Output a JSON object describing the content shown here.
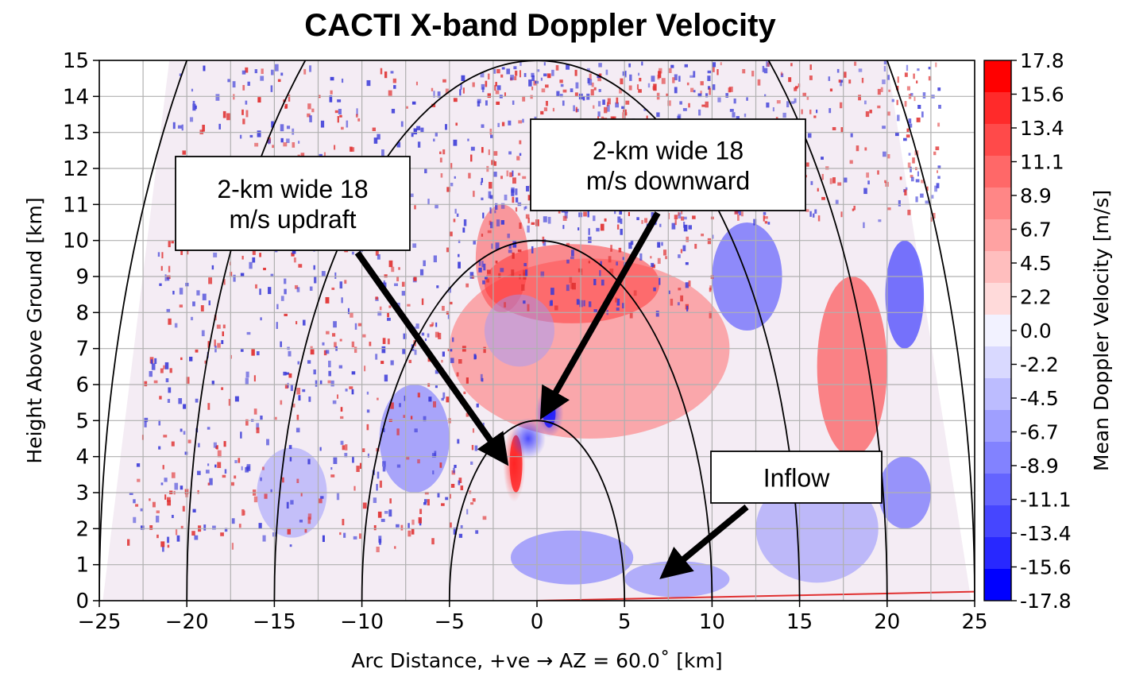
{
  "chart_data": {
    "type": "heatmap",
    "title": "CACTI X-band Doppler Velocity",
    "xlabel": "Arc Distance, +ve → AZ = 60.0˚ [km]",
    "ylabel": "Height Above Ground [km]",
    "xlim": [
      -25,
      25
    ],
    "ylim": [
      0,
      15
    ],
    "xticks": [
      "−25",
      "−20",
      "−15",
      "−10",
      "−5",
      "0",
      "5",
      "10",
      "15",
      "20",
      "25"
    ],
    "yticks": [
      "0",
      "1",
      "2",
      "3",
      "4",
      "5",
      "6",
      "7",
      "8",
      "9",
      "10",
      "11",
      "12",
      "13",
      "14",
      "15"
    ],
    "grid": true,
    "colorbar": {
      "label": "Mean Doppler Velocity [m/s]",
      "ticks": [
        "17.8",
        "15.6",
        "13.4",
        "11.1",
        "8.9",
        "6.7",
        "4.5",
        "2.2",
        "0.0",
        "-2.2",
        "-4.5",
        "-6.7",
        "-8.9",
        "-11.1",
        "-13.4",
        "-15.6",
        "-17.8"
      ],
      "colors": [
        "#ff0000",
        "#ff2a2a",
        "#ff4a4a",
        "#ff6868",
        "#ff8686",
        "#ffa2a2",
        "#ffbebe",
        "#ffdada",
        "#f2f2ff",
        "#d9d9ff",
        "#bcbcff",
        "#9f9fff",
        "#8282ff",
        "#6464ff",
        "#4646ff",
        "#2828ff",
        "#0000ff"
      ]
    },
    "range_rings_km": [
      5,
      10,
      15,
      20,
      25
    ],
    "annotations": [
      {
        "text_lines": [
          "2-km wide 18",
          "m/s updraft"
        ],
        "arrow_target": [
          -2,
          4
        ]
      },
      {
        "text_lines": [
          "2-km wide 18",
          "m/s downward"
        ],
        "arrow_target": [
          0.5,
          5.3
        ]
      },
      {
        "text_lines": [
          "Inflow"
        ],
        "arrow_target": [
          7.5,
          0.8
        ]
      }
    ]
  }
}
